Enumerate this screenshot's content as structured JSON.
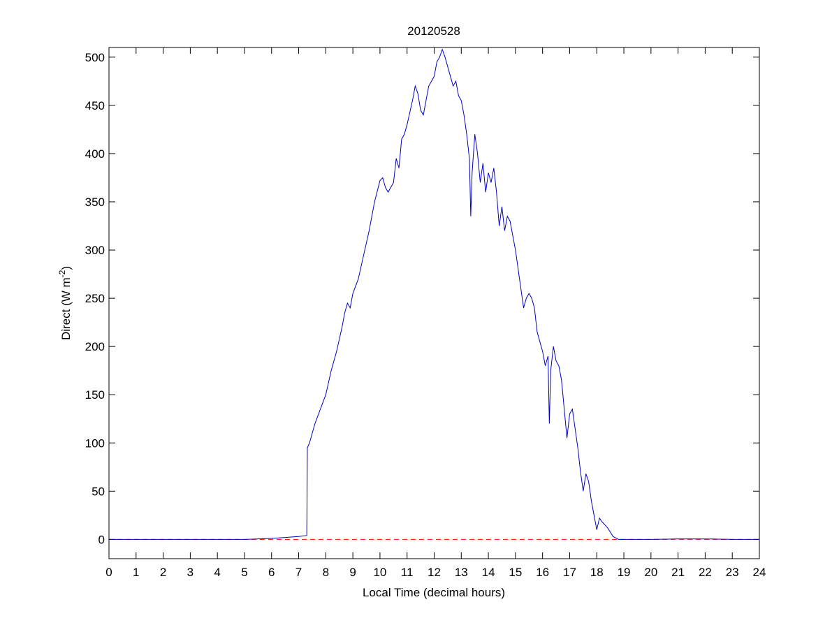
{
  "chart_data": {
    "type": "line",
    "title": "20120528",
    "xlabel": "Local Time (decimal hours)",
    "ylabel": {
      "text": "Direct (W m",
      "superscript": "-2",
      "suffix": ")"
    },
    "x": [
      0,
      1,
      2,
      3,
      4,
      5,
      5.5,
      6,
      6.5,
      7,
      7.3,
      7.32,
      7.4,
      7.6,
      7.8,
      8,
      8.2,
      8.4,
      8.6,
      8.7,
      8.8,
      8.9,
      9,
      9.2,
      9.4,
      9.6,
      9.8,
      10,
      10.1,
      10.2,
      10.3,
      10.5,
      10.6,
      10.7,
      10.8,
      10.9,
      11,
      11.2,
      11.3,
      11.4,
      11.5,
      11.6,
      11.7,
      11.8,
      12,
      12.1,
      12.2,
      12.3,
      12.4,
      12.5,
      12.6,
      12.7,
      12.8,
      12.9,
      13,
      13.1,
      13.2,
      13.3,
      13.35,
      13.4,
      13.5,
      13.6,
      13.7,
      13.8,
      13.9,
      14,
      14.1,
      14.2,
      14.3,
      14.4,
      14.5,
      14.6,
      14.7,
      14.8,
      14.9,
      15,
      15.1,
      15.2,
      15.3,
      15.4,
      15.5,
      15.6,
      15.7,
      15.8,
      16,
      16.1,
      16.2,
      16.25,
      16.3,
      16.4,
      16.5,
      16.6,
      16.7,
      16.8,
      16.9,
      17,
      17.1,
      17.2,
      17.3,
      17.4,
      17.5,
      17.6,
      17.7,
      17.8,
      17.9,
      18,
      18.1,
      18.2,
      18.4,
      18.6,
      18.8,
      19,
      20,
      21,
      22,
      23,
      24
    ],
    "series": [
      {
        "color": "#0000c0",
        "values": [
          0,
          0,
          0,
          0,
          0,
          0,
          0.5,
          1,
          2,
          3,
          4,
          95,
          100,
          120,
          135,
          150,
          175,
          195,
          220,
          235,
          245,
          240,
          255,
          270,
          295,
          320,
          350,
          372,
          375,
          365,
          360,
          370,
          395,
          385,
          415,
          420,
          430,
          455,
          470,
          462,
          445,
          440,
          455,
          470,
          480,
          495,
          500,
          508,
          500,
          490,
          480,
          470,
          475,
          460,
          455,
          440,
          420,
          395,
          335,
          380,
          420,
          400,
          370,
          390,
          360,
          380,
          370,
          385,
          360,
          325,
          345,
          320,
          335,
          330,
          315,
          300,
          280,
          260,
          240,
          250,
          255,
          250,
          240,
          215,
          195,
          180,
          190,
          120,
          175,
          200,
          185,
          180,
          165,
          135,
          105,
          130,
          135,
          115,
          95,
          70,
          50,
          68,
          60,
          40,
          25,
          10,
          22,
          18,
          12,
          3,
          0,
          0,
          0,
          0.5,
          0.5,
          0,
          0
        ]
      }
    ],
    "reference_line": {
      "value": 0,
      "color": "#ff0000",
      "style": "dashed"
    },
    "xlim": [
      0,
      24
    ],
    "xticks": [
      0,
      1,
      2,
      3,
      4,
      5,
      6,
      7,
      8,
      9,
      10,
      11,
      12,
      13,
      14,
      15,
      16,
      17,
      18,
      19,
      20,
      21,
      22,
      23,
      24
    ],
    "ylim": [
      -20,
      510
    ],
    "yticks": [
      0,
      50,
      100,
      150,
      200,
      250,
      300,
      350,
      400,
      450,
      500
    ]
  }
}
